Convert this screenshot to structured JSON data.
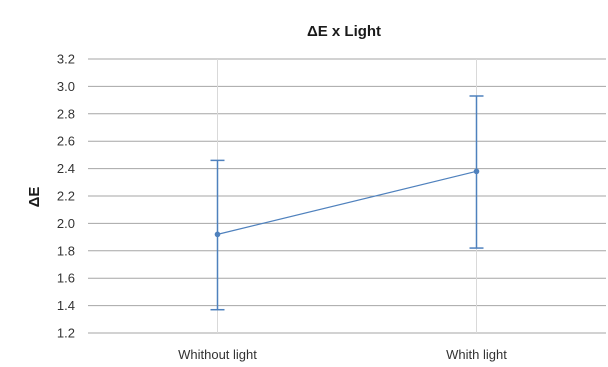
{
  "chart_data": {
    "type": "line",
    "title": "ΔE x Light",
    "xlabel": "",
    "ylabel": "ΔE",
    "categories": [
      "Whithout light",
      "Whith light"
    ],
    "series": [
      {
        "values": [
          1.92,
          2.38
        ],
        "error_low": [
          1.37,
          1.82
        ],
        "error_high": [
          2.46,
          2.93
        ]
      }
    ],
    "ylim": [
      1.2,
      3.2
    ],
    "yticks": [
      "1.2",
      "1.4",
      "1.6",
      "1.8",
      "2.0",
      "2.2",
      "2.4",
      "2.6",
      "2.8",
      "3.0",
      "3.2"
    ],
    "grid": true,
    "legend": "none",
    "colors": {
      "series": "#4f81bd",
      "grid": "#a6a6a6",
      "vgrid": "#d9d9d9",
      "text": "#333333"
    }
  }
}
